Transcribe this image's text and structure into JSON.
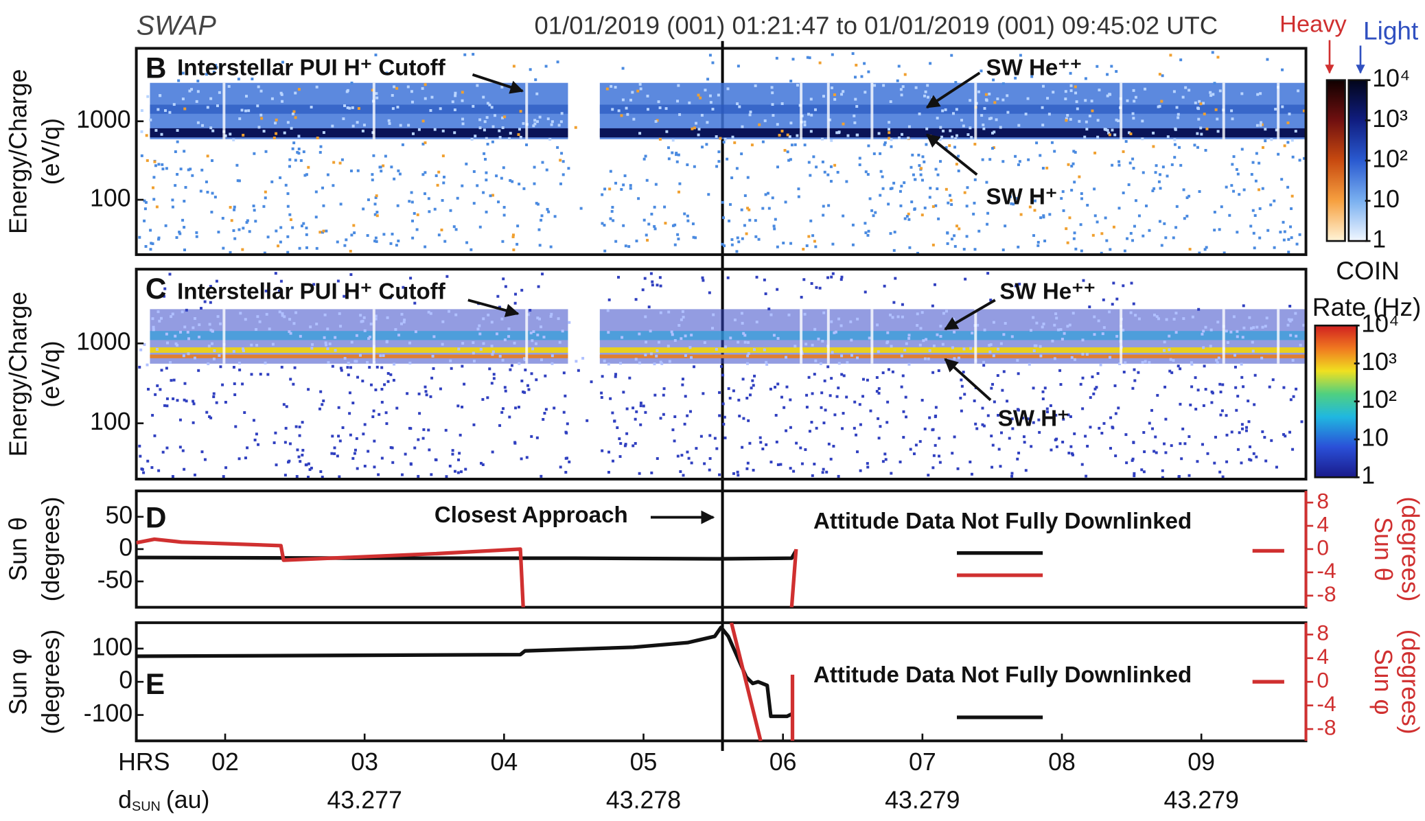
{
  "figure": {
    "instrument": "SWAP",
    "time_range": "01/01/2019 (001) 01:21:47 to 01/01/2019 (001) 09:45:02 UTC",
    "heavy": "Heavy",
    "light": "Light",
    "coin": "COIN",
    "rate": "Rate (Hz)",
    "x_label": "HRS",
    "dsun": "d",
    "dsun_sub": "SUN",
    "dsun_unit": "(au)",
    "closest_approach": "Closest Approach",
    "xlim": [
      1.363,
      9.75
    ],
    "xticks": [
      {
        "value": 2,
        "label": "02"
      },
      {
        "value": 3,
        "label": "03"
      },
      {
        "value": 4,
        "label": "04"
      },
      {
        "value": 5,
        "label": "05"
      },
      {
        "value": 6,
        "label": "06"
      },
      {
        "value": 7,
        "label": "07"
      },
      {
        "value": 8,
        "label": "08"
      },
      {
        "value": 9,
        "label": "09"
      }
    ],
    "dsun_ticks": [
      {
        "value": 3,
        "label": "43.277"
      },
      {
        "value": 5,
        "label": "43.278"
      },
      {
        "value": 7,
        "label": "43.279"
      },
      {
        "value": 9,
        "label": "43.279"
      }
    ]
  },
  "colorbars": [
    {
      "name": "heavy-light",
      "ylim": [
        1,
        10000
      ],
      "log": true,
      "yticks": [
        1,
        10,
        {
          "value": 100,
          "label": "10²"
        },
        {
          "value": 1000,
          "label": "10³"
        },
        {
          "value": 10000,
          "label": "10⁴"
        }
      ]
    },
    {
      "name": "rate",
      "ylim": [
        1,
        10000
      ],
      "log": true,
      "yticks": [
        1,
        10,
        {
          "value": 100,
          "label": "10²"
        },
        {
          "value": 1000,
          "label": "10³"
        },
        {
          "value": 10000,
          "label": "10⁴"
        }
      ]
    }
  ],
  "chart_data": [
    {
      "type": "spectrogram",
      "panel": "B",
      "y_label": [
        "Energy/Charge",
        "(eV/q)"
      ],
      "ylim": [
        20,
        8500
      ],
      "log": true,
      "yticks": [
        100,
        1000
      ],
      "annotations": [
        "Interstellar PUI H⁺ Cutoff",
        "SW He⁺⁺",
        "SW H⁺"
      ]
    },
    {
      "type": "spectrogram",
      "panel": "C",
      "y_label": [
        "Energy/Charge",
        "(eV/q)"
      ],
      "ylim": [
        20,
        8500
      ],
      "log": true,
      "yticks": [
        100,
        1000
      ],
      "annotations": [
        "Interstellar PUI H⁺ Cutoff",
        "SW He⁺⁺",
        "SW H⁺"
      ]
    },
    {
      "type": "line",
      "panel": "D",
      "y_label": [
        "Sun θ",
        "(degrees)"
      ],
      "y2_label": [
        "Sun θ",
        "(degrees)"
      ],
      "ylim": [
        -90,
        90
      ],
      "yticks": [
        -50,
        0,
        50
      ],
      "y2lim": [
        -10,
        10
      ],
      "y2ticks": [
        -8,
        -4,
        0,
        4,
        8
      ],
      "annotations": [
        "Attitude Data Not Fully Downlinked"
      ],
      "series": [
        {
          "color": "#111111",
          "x": [
            1.363,
            3.0,
            4.5,
            5.543,
            6.062,
            6.094,
            null,
            7.247,
            7.863
          ],
          "values": [
            -13,
            -14,
            -14,
            -15,
            -14,
            -2,
            null,
            -6,
            -6
          ]
        },
        {
          "color": "#d03030",
          "axis": "y2",
          "x": [
            1.363,
            1.493,
            1.687,
            2.4,
            2.419,
            3.5,
            4.117,
            4.137,
            null,
            6.062,
            6.094,
            null,
            7.247,
            7.863,
            null,
            9.367,
            9.594
          ],
          "values": [
            1.1,
            1.7,
            1.2,
            0.6,
            -1.9,
            -0.8,
            0,
            -10,
            null,
            -10,
            0,
            null,
            -4.5,
            -4.5,
            null,
            -0.3,
            -0.3
          ]
        }
      ]
    },
    {
      "type": "line",
      "panel": "E",
      "y_label": [
        "Sun φ",
        "(degrees)"
      ],
      "y2_label": [
        "Sun φ",
        "(degrees)"
      ],
      "ylim": [
        -178,
        178
      ],
      "yticks": [
        -100,
        0,
        100
      ],
      "y2lim": [
        -10,
        10
      ],
      "y2ticks": [
        -8,
        -4,
        0,
        4,
        8
      ],
      "annotations": [
        "Attitude Data Not Fully Downlinked"
      ],
      "series": [
        {
          "color": "#111111",
          "x": [
            1.363,
            4.117,
            4.15,
            4.927,
            5.316,
            5.511,
            5.556,
            5.608,
            5.737,
            5.783,
            5.822,
            5.887,
            5.913,
            6.029,
            6.068,
            null,
            7.247,
            7.863
          ],
          "values": [
            77,
            82,
            93,
            104,
            118,
            137,
            164,
            137,
            14,
            -5,
            0,
            -11,
            -104,
            -104,
            -96,
            null,
            -107,
            -107
          ]
        },
        {
          "color": "#d03030",
          "axis": "y2",
          "x": [
            5.63,
            5.84,
            null,
            6.068,
            6.068,
            null,
            9.367,
            9.594
          ],
          "values": [
            10,
            -10,
            null,
            -10,
            1.2,
            null,
            0,
            0
          ]
        }
      ]
    }
  ]
}
